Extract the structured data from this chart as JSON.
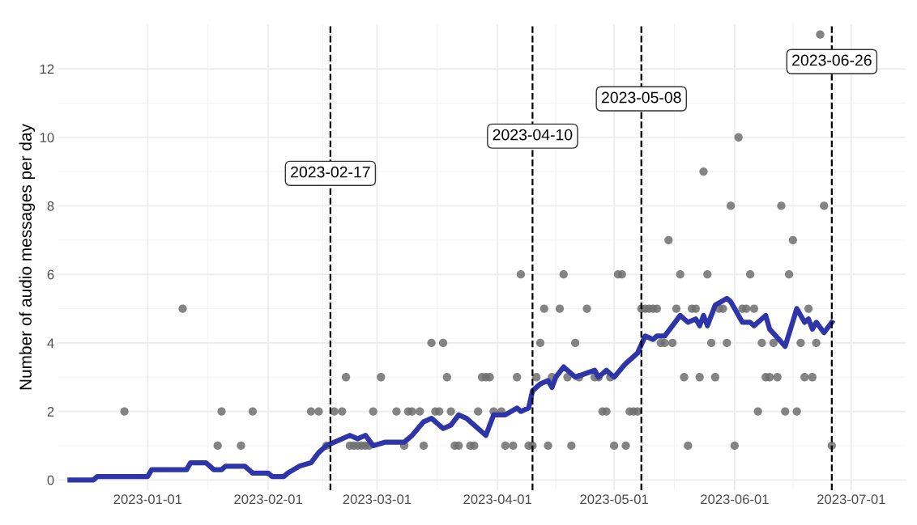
{
  "chart_data": {
    "type": "scatter",
    "ylabel": "Number of audio messages per day",
    "xlim": [
      "2022-12-09",
      "2023-07-15"
    ],
    "xticks": [
      "2023-01-01",
      "2023-02-01",
      "2023-03-01",
      "2023-04-01",
      "2023-05-01",
      "2023-06-01",
      "2023-07-01"
    ],
    "ylim": [
      -0.3,
      13.3
    ],
    "yticks": [
      0,
      2,
      4,
      6,
      8,
      10,
      12
    ],
    "grid": true,
    "legend": false,
    "series": [
      {
        "color": "#6e6e6e",
        "marker": "circle",
        "x": [
          "2022-12-26",
          "2023-01-10",
          "2023-01-19",
          "2023-01-20",
          "2023-01-25",
          "2023-01-28",
          "2023-02-12",
          "2023-02-14",
          "2023-02-16",
          "2023-02-18",
          "2023-02-20",
          "2023-02-21",
          "2023-02-22",
          "2023-02-23",
          "2023-02-24",
          "2023-02-25",
          "2023-02-26",
          "2023-02-27",
          "2023-02-28",
          "2023-03-02",
          "2023-03-06",
          "2023-03-08",
          "2023-03-09",
          "2023-03-10",
          "2023-03-12",
          "2023-03-13",
          "2023-03-15",
          "2023-03-16",
          "2023-03-17",
          "2023-03-18",
          "2023-03-19",
          "2023-03-20",
          "2023-03-21",
          "2023-03-22",
          "2023-03-25",
          "2023-03-26",
          "2023-03-27",
          "2023-03-28",
          "2023-03-29",
          "2023-03-30",
          "2023-03-31",
          "2023-04-02",
          "2023-04-03",
          "2023-04-05",
          "2023-04-06",
          "2023-04-07",
          "2023-04-09",
          "2023-04-10",
          "2023-04-11",
          "2023-04-12",
          "2023-04-13",
          "2023-04-14",
          "2023-04-15",
          "2023-04-17",
          "2023-04-18",
          "2023-04-19",
          "2023-04-20",
          "2023-04-21",
          "2023-04-22",
          "2023-04-24",
          "2023-04-26",
          "2023-04-27",
          "2023-04-28",
          "2023-04-29",
          "2023-04-30",
          "2023-05-01",
          "2023-05-02",
          "2023-05-03",
          "2023-05-04",
          "2023-05-05",
          "2023-05-06",
          "2023-05-07",
          "2023-05-08",
          "2023-05-09",
          "2023-05-10",
          "2023-05-11",
          "2023-05-12",
          "2023-05-13",
          "2023-05-14",
          "2023-05-15",
          "2023-05-16",
          "2023-05-17",
          "2023-05-18",
          "2023-05-19",
          "2023-05-20",
          "2023-05-21",
          "2023-05-22",
          "2023-05-23",
          "2023-05-24",
          "2023-05-25",
          "2023-05-26",
          "2023-05-27",
          "2023-05-28",
          "2023-05-29",
          "2023-05-30",
          "2023-05-31",
          "2023-06-01",
          "2023-06-02",
          "2023-06-03",
          "2023-06-04",
          "2023-06-05",
          "2023-06-06",
          "2023-06-07",
          "2023-06-08",
          "2023-06-09",
          "2023-06-10",
          "2023-06-11",
          "2023-06-12",
          "2023-06-13",
          "2023-06-14",
          "2023-06-15",
          "2023-06-16",
          "2023-06-17",
          "2023-06-18",
          "2023-06-19",
          "2023-06-20",
          "2023-06-21",
          "2023-06-22",
          "2023-06-23",
          "2023-06-24",
          "2023-06-26"
        ],
        "values": [
          2,
          5,
          1,
          2,
          1,
          2,
          2,
          2,
          1,
          2,
          2,
          3,
          1,
          1,
          1,
          1,
          1,
          1,
          2,
          3,
          2,
          1,
          2,
          2,
          2,
          1,
          4,
          2,
          2,
          4,
          3,
          2,
          1,
          1,
          1,
          1,
          2,
          3,
          3,
          3,
          2,
          2,
          1,
          1,
          3,
          6,
          1,
          1,
          3,
          4,
          5,
          1,
          3,
          5,
          6,
          3,
          1,
          4,
          3,
          5,
          3,
          3,
          2,
          2,
          3,
          1,
          6,
          6,
          1,
          2,
          2,
          2,
          5,
          5,
          5,
          5,
          5,
          4,
          4,
          7,
          4,
          5,
          6,
          3,
          1,
          5,
          5,
          3,
          9,
          6,
          4,
          3,
          5,
          5,
          4,
          8,
          1,
          10,
          5,
          5,
          6,
          5,
          2,
          4,
          3,
          3,
          4,
          3,
          8,
          2,
          6,
          7,
          2,
          4,
          3,
          5,
          3,
          4,
          13,
          8,
          1
        ]
      },
      {
        "type": "line",
        "color": "#2e35a8",
        "line_style": "solid",
        "x": [
          "2022-12-12",
          "2022-12-18",
          "2022-12-19",
          "2023-01-01",
          "2023-01-02",
          "2023-01-11",
          "2023-01-12",
          "2023-01-16",
          "2023-01-18",
          "2023-01-20",
          "2023-01-21",
          "2023-01-26",
          "2023-01-28",
          "2023-02-01",
          "2023-02-02",
          "2023-02-05",
          "2023-02-06",
          "2023-02-09",
          "2023-02-12",
          "2023-02-14",
          "2023-02-16",
          "2023-02-18",
          "2023-02-22",
          "2023-02-24",
          "2023-02-26",
          "2023-02-28",
          "2023-03-03",
          "2023-03-08",
          "2023-03-10",
          "2023-03-13",
          "2023-03-15",
          "2023-03-18",
          "2023-03-20",
          "2023-03-22",
          "2023-03-24",
          "2023-03-29",
          "2023-03-31",
          "2023-04-03",
          "2023-04-06",
          "2023-04-07",
          "2023-04-09",
          "2023-04-10",
          "2023-04-12",
          "2023-04-14",
          "2023-04-15",
          "2023-04-16",
          "2023-04-18",
          "2023-04-19",
          "2023-04-21",
          "2023-04-26",
          "2023-04-27",
          "2023-04-29",
          "2023-05-01",
          "2023-05-04",
          "2023-05-07",
          "2023-05-09",
          "2023-05-11",
          "2023-05-12",
          "2023-05-14",
          "2023-05-18",
          "2023-05-20",
          "2023-05-22",
          "2023-05-23",
          "2023-05-24",
          "2023-05-25",
          "2023-05-27",
          "2023-05-30",
          "2023-05-31",
          "2023-06-03",
          "2023-06-04",
          "2023-06-05",
          "2023-06-06",
          "2023-06-09",
          "2023-06-10",
          "2023-06-14",
          "2023-06-17",
          "2023-06-19",
          "2023-06-20",
          "2023-06-21",
          "2023-06-22",
          "2023-06-24",
          "2023-06-26"
        ],
        "values": [
          0,
          0,
          0.1,
          0.1,
          0.3,
          0.3,
          0.5,
          0.5,
          0.3,
          0.3,
          0.4,
          0.4,
          0.2,
          0.2,
          0.1,
          0.1,
          0.2,
          0.4,
          0.5,
          0.8,
          1.0,
          1.1,
          1.3,
          1.2,
          1.3,
          1.0,
          1.1,
          1.1,
          1.3,
          1.7,
          1.8,
          1.5,
          1.6,
          1.9,
          1.8,
          1.3,
          1.9,
          1.9,
          2.1,
          2.0,
          2.1,
          2.6,
          2.8,
          2.9,
          2.7,
          3.0,
          3.3,
          3.2,
          3.0,
          3.2,
          3.0,
          3.2,
          3.0,
          3.4,
          3.7,
          4.2,
          4.1,
          4.2,
          4.2,
          4.8,
          4.6,
          4.7,
          4.5,
          4.8,
          4.5,
          5.1,
          5.3,
          5.2,
          4.6,
          4.6,
          4.6,
          4.5,
          4.8,
          4.4,
          3.9,
          5.0,
          4.6,
          4.7,
          4.4,
          4.6,
          4.3,
          4.6
        ]
      }
    ],
    "ref_lines": [
      {
        "axis": "x",
        "value": "2023-02-17",
        "label": "2023-02-17",
        "line_style": "dashed",
        "color": "#000000"
      },
      {
        "axis": "x",
        "value": "2023-04-10",
        "label": "2023-04-10",
        "line_style": "dashed",
        "color": "#000000"
      },
      {
        "axis": "x",
        "value": "2023-05-08",
        "label": "2023-05-08",
        "line_style": "dashed",
        "color": "#000000"
      },
      {
        "axis": "x",
        "value": "2023-06-26",
        "label": "2023-06-26",
        "line_style": "dashed",
        "color": "#000000"
      }
    ]
  }
}
